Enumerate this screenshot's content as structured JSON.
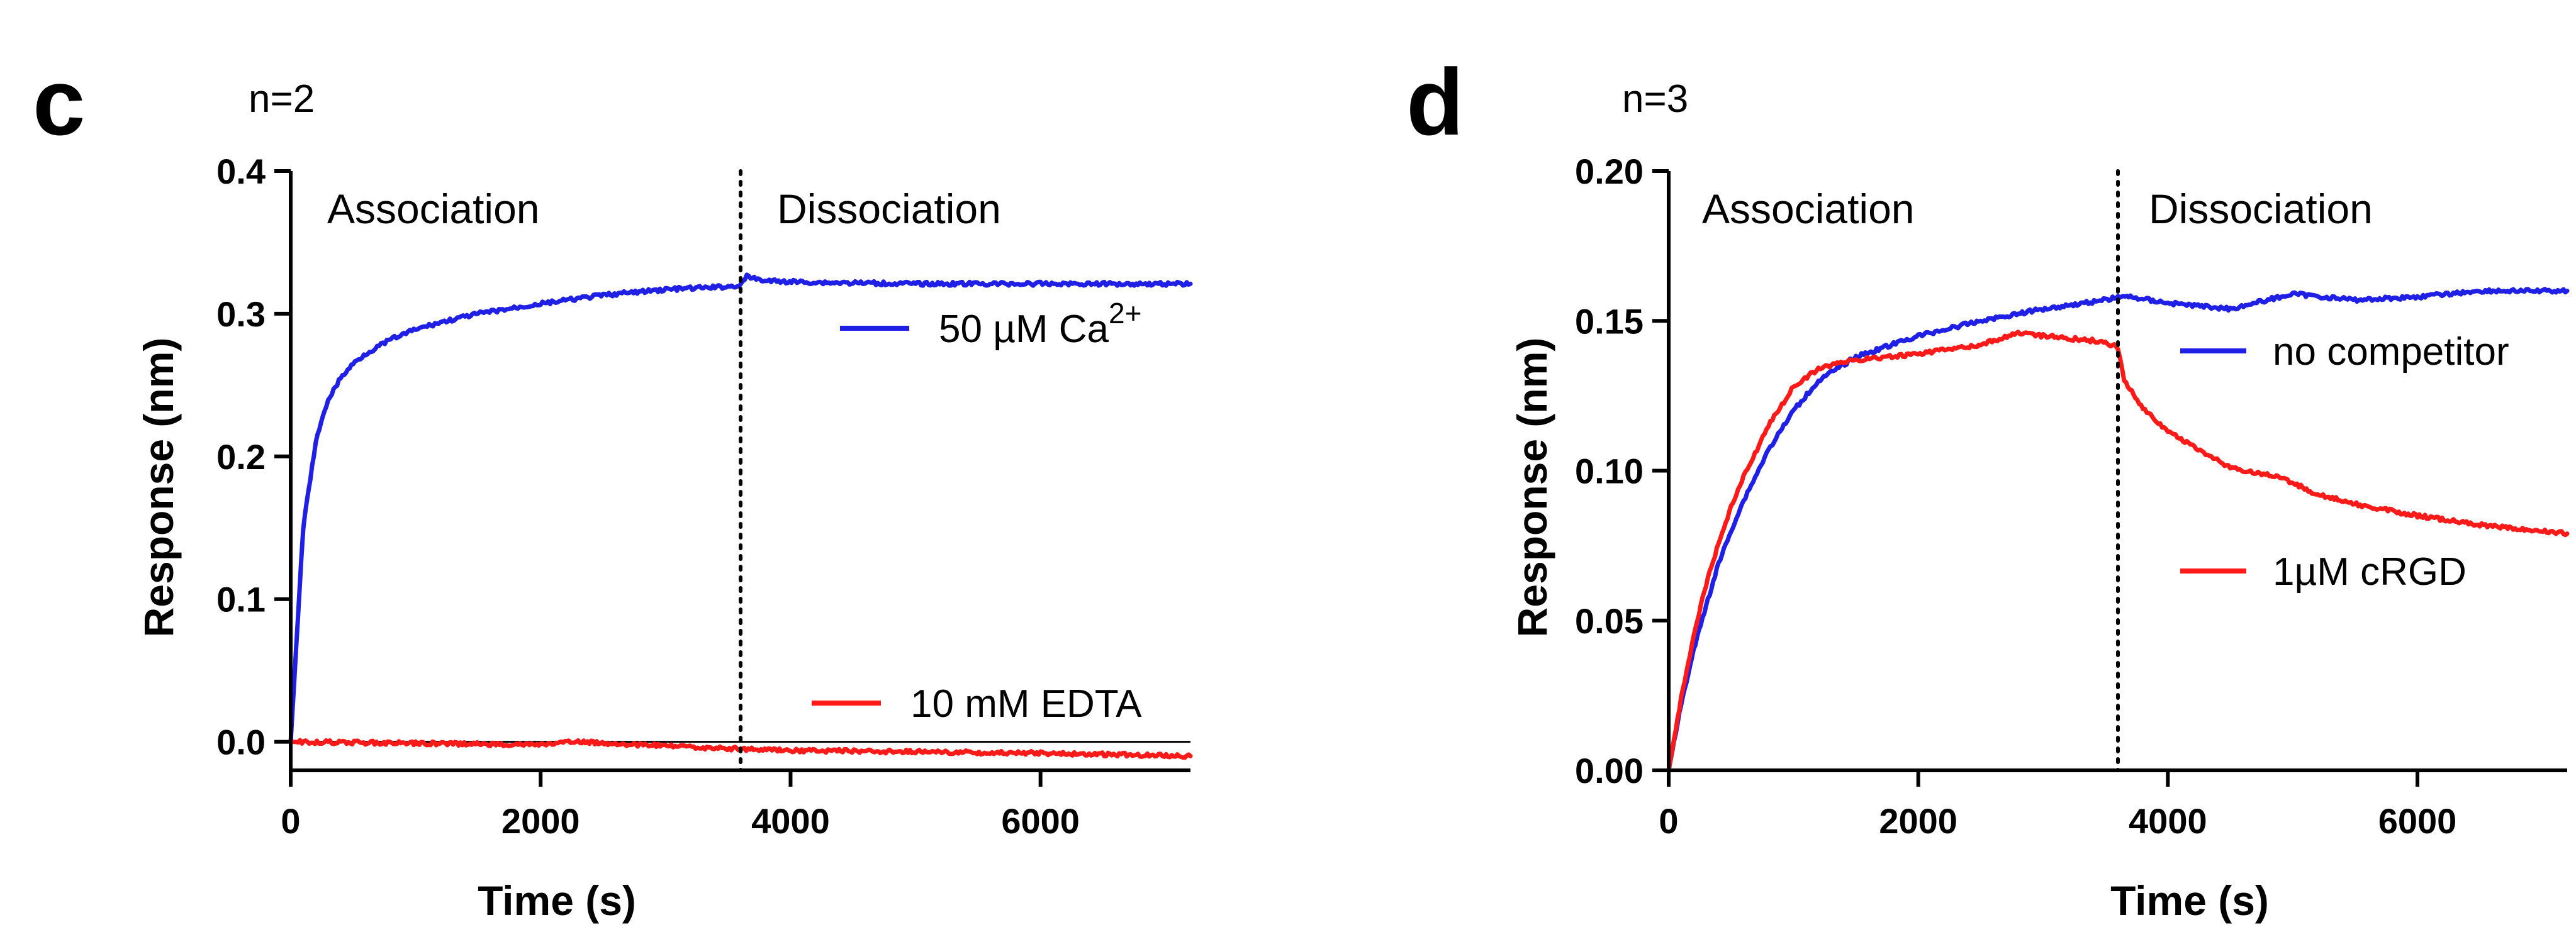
{
  "chart_data": [
    {
      "type": "line",
      "panel": "c",
      "annotation": "n=2",
      "xlabel": "Time (s)",
      "ylabel": "Response (nm)",
      "xlim": [
        0,
        7200
      ],
      "ylim": [
        -0.02,
        0.4
      ],
      "xticks": [
        0,
        2000,
        4000,
        6000
      ],
      "xtick_labels": [
        "0",
        "2000",
        "4000",
        "6000"
      ],
      "yticks": [
        0.0,
        0.1,
        0.2,
        0.3,
        0.4
      ],
      "ytick_labels": [
        "0.0",
        "0.1",
        "0.2",
        "0.3",
        "0.4"
      ],
      "phase_boundary_x": 3600,
      "phase_labels": [
        "Association",
        "Dissociation"
      ],
      "series": [
        {
          "name": "50 µM Ca",
          "name_superscript": "2+",
          "color": "#1f1fe6",
          "x": [
            0,
            100,
            200,
            300,
            400,
            500,
            600,
            800,
            1000,
            1200,
            1500,
            2000,
            2500,
            3000,
            3500,
            3600,
            3650,
            3800,
            4200,
            5000,
            6000,
            7200
          ],
          "y": [
            0.0,
            0.15,
            0.21,
            0.24,
            0.255,
            0.265,
            0.272,
            0.282,
            0.289,
            0.294,
            0.3,
            0.307,
            0.313,
            0.317,
            0.319,
            0.32,
            0.326,
            0.323,
            0.322,
            0.321,
            0.321,
            0.321
          ]
        },
        {
          "name": "10 mM EDTA",
          "color": "#ff1a1a",
          "x": [
            0,
            1000,
            2000,
            2300,
            3000,
            3600,
            4000,
            5000,
            6000,
            7200
          ],
          "y": [
            0.0,
            -0.001,
            -0.002,
            0.0,
            -0.003,
            -0.005,
            -0.006,
            -0.007,
            -0.008,
            -0.01
          ]
        }
      ]
    },
    {
      "type": "line",
      "panel": "d",
      "annotation": "n=3",
      "xlabel": "Time (s)",
      "ylabel": "Response (nm)",
      "xlim": [
        0,
        7200
      ],
      "ylim": [
        0.0,
        0.2
      ],
      "xticks": [
        0,
        2000,
        4000,
        6000
      ],
      "xtick_labels": [
        "0",
        "2000",
        "4000",
        "6000"
      ],
      "yticks": [
        0.0,
        0.05,
        0.1,
        0.15,
        0.2
      ],
      "ytick_labels": [
        "0.00",
        "0.05",
        "0.10",
        "0.15",
        "0.20"
      ],
      "phase_boundary_x": 3600,
      "phase_labels": [
        "Association",
        "Dissociation"
      ],
      "series": [
        {
          "name": "no competitor",
          "color": "#1f1fe6",
          "x": [
            0,
            100,
            200,
            300,
            400,
            500,
            600,
            800,
            1000,
            1200,
            1500,
            2000,
            2500,
            3000,
            3500,
            3600,
            3700,
            4000,
            4500,
            5000,
            5500,
            6000,
            6500,
            7200
          ],
          "y": [
            0.0,
            0.022,
            0.04,
            0.055,
            0.069,
            0.08,
            0.09,
            0.107,
            0.12,
            0.13,
            0.138,
            0.145,
            0.15,
            0.154,
            0.157,
            0.158,
            0.158,
            0.156,
            0.154,
            0.159,
            0.157,
            0.158,
            0.16,
            0.16
          ]
        },
        {
          "name": "1µM cRGD",
          "color": "#ff1a1a",
          "x": [
            0,
            100,
            200,
            300,
            400,
            500,
            600,
            800,
            1000,
            1200,
            1500,
            2000,
            2500,
            2800,
            3000,
            3500,
            3600,
            3650,
            3800,
            4000,
            4500,
            4900,
            5200,
            5600,
            6000,
            6500,
            7200
          ],
          "y": [
            0.0,
            0.024,
            0.045,
            0.062,
            0.076,
            0.088,
            0.098,
            0.115,
            0.128,
            0.134,
            0.137,
            0.139,
            0.142,
            0.146,
            0.145,
            0.143,
            0.141,
            0.13,
            0.121,
            0.113,
            0.101,
            0.098,
            0.092,
            0.088,
            0.085,
            0.082,
            0.079
          ]
        }
      ]
    }
  ]
}
